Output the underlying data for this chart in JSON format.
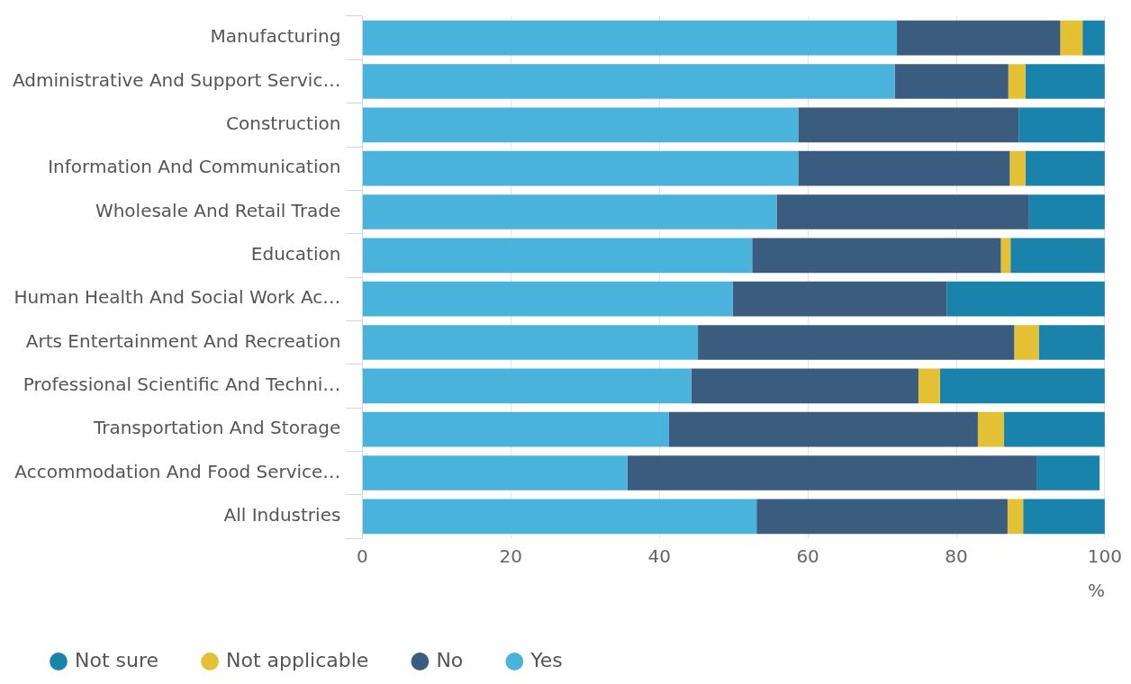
{
  "chart_data": {
    "type": "bar",
    "orientation": "horizontal",
    "stacked": true,
    "categories": [
      "Manufacturing",
      "Administrative And Support Servic…",
      "Construction",
      "Information And Communication",
      "Wholesale And Retail Trade",
      "Education",
      "Human Health And Social Work Ac…",
      "Arts Entertainment And Recreation",
      "Professional Scientific And Techni…",
      "Transportation And Storage",
      "Accommodation And Food Service…",
      "All Industries"
    ],
    "series": [
      {
        "name": "Yes",
        "color": "#4ab3dc",
        "values": [
          72,
          71.7,
          58.7,
          58.7,
          55.8,
          52.5,
          49.9,
          45.2,
          44.3,
          41.3,
          35.7,
          53.1
        ]
      },
      {
        "name": "No",
        "color": "#3a5c7e",
        "values": [
          22,
          15.3,
          29.7,
          28.5,
          34,
          33.5,
          28.8,
          42.6,
          30.6,
          41.6,
          55.1,
          33.8
        ]
      },
      {
        "name": "Not applicable",
        "color": "#e4c035",
        "values": [
          3,
          2.3,
          null,
          2.1,
          null,
          1.3,
          null,
          3.3,
          2.9,
          3.5,
          null,
          2.1
        ]
      },
      {
        "name": "Not sure",
        "color": "#1a83ab",
        "values": [
          3,
          10.7,
          11.6,
          10.7,
          10.2,
          12.7,
          21.3,
          8.9,
          22.2,
          13.6,
          8.5,
          11
        ]
      }
    ],
    "xlabel": "%",
    "xlim": [
      0,
      100
    ],
    "xticks": [
      0,
      20,
      40,
      60,
      80,
      100
    ],
    "grid": "x",
    "legend": "bottom"
  }
}
